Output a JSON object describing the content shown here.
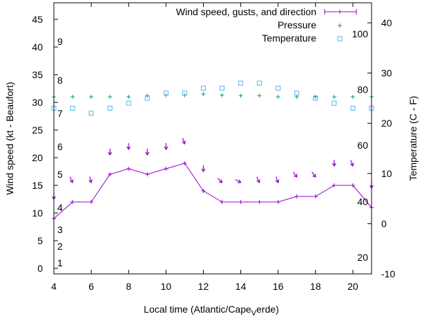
{
  "chart_data": {
    "type": "line",
    "xlabel": "Local time (Atlantic/Cape",
    "xlabel_subscript": "V",
    "xlabel_tail": "erde)",
    "ylabel": "Wind speed (kt - Beaufort)",
    "y2label": "Temperature (C - F)",
    "xlim": [
      4,
      21
    ],
    "ylim": [
      -1,
      48
    ],
    "y2lim": [
      -10,
      44
    ],
    "x_ticks": [
      4,
      6,
      8,
      10,
      12,
      14,
      16,
      18,
      20
    ],
    "x_tick_labels": [
      "4",
      "6",
      "8",
      "10",
      "12",
      "14",
      "16",
      "18",
      "20"
    ],
    "y_ticks": [
      0,
      5,
      10,
      15,
      20,
      25,
      30,
      35,
      40,
      45
    ],
    "y_tick_labels": [
      "0",
      "5",
      "10",
      "15",
      "20",
      "25",
      "30",
      "35",
      "40",
      "45"
    ],
    "y2_ticks": [
      -10,
      0,
      10,
      20,
      30,
      40
    ],
    "y2_tick_labels": [
      "-10",
      "0",
      "10",
      "20",
      "30",
      "40"
    ],
    "beaufort_labels": [
      {
        "label": "1",
        "y": 1
      },
      {
        "label": "2",
        "y": 4
      },
      {
        "label": "3",
        "y": 7
      },
      {
        "label": "4",
        "y": 11
      },
      {
        "label": "5",
        "y": 17
      },
      {
        "label": "6",
        "y": 22
      },
      {
        "label": "7",
        "y": 28
      },
      {
        "label": "8",
        "y": 34
      },
      {
        "label": "9",
        "y": 41
      }
    ],
    "fahrenheit_labels": [
      {
        "label": "20",
        "t": -6.7
      },
      {
        "label": "40",
        "t": 4.4
      },
      {
        "label": "60",
        "t": 15.6
      },
      {
        "label": "80",
        "t": 26.7
      },
      {
        "label": "100",
        "t": 37.8
      }
    ],
    "legend_position": "top-right",
    "series": [
      {
        "name": "Wind speed, gusts, and direction",
        "color": "#9400d3",
        "x": [
          4,
          5,
          6,
          7,
          8,
          9,
          10,
          11,
          12,
          13,
          14,
          15,
          16,
          17,
          18,
          19,
          20,
          21
        ],
        "values": [
          9,
          12,
          12,
          17,
          18,
          17,
          18,
          19,
          14,
          12,
          12,
          12,
          12,
          13,
          13,
          15,
          15,
          11
        ],
        "gusts": [
          12.5,
          15.5,
          15.5,
          20.5,
          21.5,
          20.5,
          21.5,
          22.5,
          17.5,
          15.5,
          15.5,
          15.5,
          15.5,
          16.5,
          16.5,
          18.5,
          18.5,
          14.5
        ],
        "direction_deg": [
          0,
          25,
          15,
          0,
          0,
          0,
          0,
          20,
          0,
          45,
          60,
          25,
          20,
          35,
          35,
          0,
          20,
          0
        ]
      },
      {
        "name": "Pressure",
        "color": "#009e73",
        "x": [
          4,
          5,
          6,
          7,
          8,
          9,
          10,
          11,
          12,
          13,
          14,
          15,
          16,
          17,
          18,
          19,
          20,
          21
        ],
        "values": [
          31.0,
          31.0,
          31.0,
          31.0,
          31.0,
          31.2,
          31.3,
          31.3,
          31.5,
          31.3,
          31.2,
          31.2,
          31.0,
          31.0,
          31.0,
          31.0,
          31.0,
          31.0
        ]
      },
      {
        "name": "Temperature",
        "color": "#56b4e9",
        "x": [
          4,
          5,
          6,
          7,
          8,
          9,
          10,
          11,
          12,
          13,
          14,
          15,
          16,
          17,
          18,
          19,
          20,
          21
        ],
        "values": [
          23,
          23,
          22,
          23,
          24,
          25,
          26,
          26,
          27,
          27,
          28,
          28,
          27,
          26,
          25,
          24,
          23,
          23
        ]
      }
    ]
  }
}
